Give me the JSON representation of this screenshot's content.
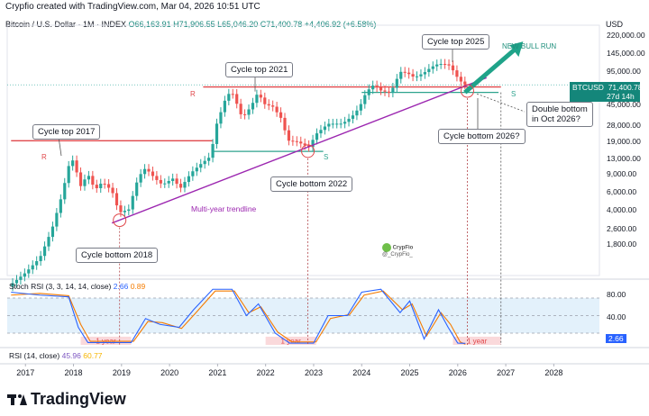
{
  "header": {
    "caption": "Crypfio created with TradingView.com, Mar 04, 2026 10:51 UTC"
  },
  "symbol": {
    "name": "Bitcoin / U.S. Dollar · 1M · INDEX",
    "open": "O66,163.91",
    "high": "H71,906.55",
    "low": "L65,046.20",
    "close": "C71,400.78",
    "change": "+4,406.92 (+6.58%)"
  },
  "currency": "USD",
  "price_label": {
    "ticker": "BTCUSD",
    "price": "71,400.78",
    "countdown": "27d 14h"
  },
  "colors": {
    "up": "#26a69a",
    "down": "#ef5350",
    "resistance": "#e0484b",
    "support": "#2ea38e",
    "trend": "#9c27b0",
    "rsi": "#f57c00",
    "stoch": "#2962ff",
    "arrow": "#1fa389"
  },
  "annotations": {
    "top_2017": "Cycle top 2017",
    "top_2021": "Cycle top 2021",
    "top_2025": "Cycle top 2025",
    "bottom_2018": "Cycle bottom 2018",
    "bottom_2022": "Cycle bottom 2022",
    "bottom_2026": "Cycle bottom 2026?",
    "double_bottom": "Double bottom in Oct 2026?",
    "new_bull_run": "NEW BULL RUN",
    "trendline": "Multi-year trendline",
    "r": "R",
    "s": "S",
    "year": "1 year"
  },
  "indicators": {
    "stoch": {
      "label": "Stoch RSI (3, 3, 14, 14, close)",
      "k": "2.66",
      "d": "0.89",
      "level_high": "80.00",
      "level_low": "40.00",
      "current": "2.66"
    },
    "rsi": {
      "label": "RSI (14, close)",
      "value": "45.96",
      "ma": "60.77"
    }
  },
  "watermark": {
    "name": "CrypFio",
    "handle": "@_CrypFio_"
  },
  "brand": "TradingView",
  "chart_data": {
    "type": "candlestick",
    "title": "Bitcoin / U.S. Dollar · 1M · INDEX",
    "y_scale": "log",
    "ylim": [
      900,
      280000
    ],
    "y_ticks": [
      1800,
      2600,
      4000,
      6000,
      9000,
      13000,
      19000,
      28000,
      45000,
      95000,
      145000,
      220000
    ],
    "y_tick_labels": [
      "1,800.00",
      "2,600.00",
      "4,000.00",
      "6,000.00",
      "9,000.00",
      "13,000.00",
      "19,000.00",
      "28,000.00",
      "45,000.00",
      "95,000.00",
      "145,000.00",
      "220,000.00"
    ],
    "x_ticks": [
      "2017",
      "2018",
      "2019",
      "2020",
      "2021",
      "2022",
      "2023",
      "2024",
      "2025",
      "2026",
      "2027",
      "2028"
    ],
    "t_start": 2016.62,
    "t_end": 2028.95,
    "resistance_levels": [
      {
        "price": 68000,
        "from": 2020.7,
        "to": 2026.9
      },
      {
        "price": 19800,
        "from": 2016.7,
        "to": 2020.9
      }
    ],
    "support_levels": [
      {
        "price": 60000,
        "from": 2024.0,
        "to": 2026.85
      },
      {
        "price": 15500,
        "from": 2020.9,
        "to": 2023.2
      }
    ],
    "trendline": {
      "t1": 2018.8,
      "p1": 3000,
      "t2": 2026.6,
      "p2": 84000
    },
    "cycle_bottoms": [
      {
        "t": 2018.96,
        "p": 3200
      },
      {
        "t": 2022.88,
        "p": 15600
      },
      {
        "t": 2026.2,
        "p": 62000
      }
    ],
    "candle_path": [
      {
        "t": 2016.65,
        "p": 700
      },
      {
        "t": 2017.0,
        "p": 960
      },
      {
        "t": 2017.3,
        "p": 1350
      },
      {
        "t": 2017.55,
        "p": 2600
      },
      {
        "t": 2017.75,
        "p": 5500
      },
      {
        "t": 2017.95,
        "p": 14000
      },
      {
        "t": 2018.05,
        "p": 10200
      },
      {
        "t": 2018.15,
        "p": 7000
      },
      {
        "t": 2018.3,
        "p": 9200
      },
      {
        "t": 2018.45,
        "p": 6400
      },
      {
        "t": 2018.6,
        "p": 7700
      },
      {
        "t": 2018.8,
        "p": 6300
      },
      {
        "t": 2018.95,
        "p": 3800
      },
      {
        "t": 2019.15,
        "p": 4100
      },
      {
        "t": 2019.35,
        "p": 8600
      },
      {
        "t": 2019.5,
        "p": 10600
      },
      {
        "t": 2019.7,
        "p": 8300
      },
      {
        "t": 2019.85,
        "p": 7200
      },
      {
        "t": 2020.1,
        "p": 8500
      },
      {
        "t": 2020.2,
        "p": 6400
      },
      {
        "t": 2020.45,
        "p": 9500
      },
      {
        "t": 2020.65,
        "p": 11600
      },
      {
        "t": 2020.85,
        "p": 13800
      },
      {
        "t": 2020.98,
        "p": 29000
      },
      {
        "t": 2021.2,
        "p": 58000
      },
      {
        "t": 2021.35,
        "p": 57700
      },
      {
        "t": 2021.45,
        "p": 37000
      },
      {
        "t": 2021.55,
        "p": 35000
      },
      {
        "t": 2021.7,
        "p": 43800
      },
      {
        "t": 2021.85,
        "p": 61300
      },
      {
        "t": 2021.95,
        "p": 46300
      },
      {
        "t": 2022.15,
        "p": 43200
      },
      {
        "t": 2022.35,
        "p": 31800
      },
      {
        "t": 2022.45,
        "p": 19900
      },
      {
        "t": 2022.65,
        "p": 19400
      },
      {
        "t": 2022.9,
        "p": 17100
      },
      {
        "t": 2023.05,
        "p": 23100
      },
      {
        "t": 2023.3,
        "p": 29200
      },
      {
        "t": 2023.6,
        "p": 29300
      },
      {
        "t": 2023.8,
        "p": 34600
      },
      {
        "t": 2023.95,
        "p": 42300
      },
      {
        "t": 2024.1,
        "p": 61100
      },
      {
        "t": 2024.25,
        "p": 71300
      },
      {
        "t": 2024.4,
        "p": 62700
      },
      {
        "t": 2024.6,
        "p": 58900
      },
      {
        "t": 2024.8,
        "p": 96400
      },
      {
        "t": 2024.95,
        "p": 93400
      },
      {
        "t": 2025.1,
        "p": 84300
      },
      {
        "t": 2025.3,
        "p": 94200
      },
      {
        "t": 2025.45,
        "p": 107100
      },
      {
        "t": 2025.6,
        "p": 115800
      },
      {
        "t": 2025.75,
        "p": 114000
      },
      {
        "t": 2025.85,
        "p": 110000
      },
      {
        "t": 2025.95,
        "p": 90000
      },
      {
        "t": 2026.05,
        "p": 78000
      },
      {
        "t": 2026.16,
        "p": 71400
      }
    ],
    "stoch_k_path": [
      {
        "t": 2016.7,
        "v": 90
      },
      {
        "t": 2017.3,
        "v": 85
      },
      {
        "t": 2017.9,
        "v": 82
      },
      {
        "t": 2018.1,
        "v": 30
      },
      {
        "t": 2018.3,
        "v": 4
      },
      {
        "t": 2019.2,
        "v": 4
      },
      {
        "t": 2019.5,
        "v": 45
      },
      {
        "t": 2019.8,
        "v": 35
      },
      {
        "t": 2020.2,
        "v": 30
      },
      {
        "t": 2020.5,
        "v": 60
      },
      {
        "t": 2020.9,
        "v": 95
      },
      {
        "t": 2021.3,
        "v": 95
      },
      {
        "t": 2021.6,
        "v": 50
      },
      {
        "t": 2021.85,
        "v": 70
      },
      {
        "t": 2022.2,
        "v": 20
      },
      {
        "t": 2022.5,
        "v": 3
      },
      {
        "t": 2023.0,
        "v": 3
      },
      {
        "t": 2023.3,
        "v": 50
      },
      {
        "t": 2023.7,
        "v": 50
      },
      {
        "t": 2024.0,
        "v": 90
      },
      {
        "t": 2024.4,
        "v": 95
      },
      {
        "t": 2024.8,
        "v": 55
      },
      {
        "t": 2025.0,
        "v": 75
      },
      {
        "t": 2025.3,
        "v": 10
      },
      {
        "t": 2025.6,
        "v": 60
      },
      {
        "t": 2025.8,
        "v": 30
      },
      {
        "t": 2026.0,
        "v": 3
      },
      {
        "t": 2026.16,
        "v": 2.66
      }
    ],
    "stoch_d_path": [
      {
        "t": 2016.7,
        "v": 85
      },
      {
        "t": 2017.3,
        "v": 88
      },
      {
        "t": 2017.9,
        "v": 84
      },
      {
        "t": 2018.15,
        "v": 35
      },
      {
        "t": 2018.35,
        "v": 6
      },
      {
        "t": 2019.25,
        "v": 6
      },
      {
        "t": 2019.55,
        "v": 40
      },
      {
        "t": 2019.85,
        "v": 38
      },
      {
        "t": 2020.25,
        "v": 28
      },
      {
        "t": 2020.55,
        "v": 55
      },
      {
        "t": 2020.95,
        "v": 92
      },
      {
        "t": 2021.35,
        "v": 92
      },
      {
        "t": 2021.65,
        "v": 55
      },
      {
        "t": 2021.9,
        "v": 65
      },
      {
        "t": 2022.25,
        "v": 22
      },
      {
        "t": 2022.55,
        "v": 5
      },
      {
        "t": 2023.05,
        "v": 5
      },
      {
        "t": 2023.35,
        "v": 45
      },
      {
        "t": 2023.75,
        "v": 52
      },
      {
        "t": 2024.05,
        "v": 85
      },
      {
        "t": 2024.45,
        "v": 92
      },
      {
        "t": 2024.85,
        "v": 60
      },
      {
        "t": 2025.05,
        "v": 70
      },
      {
        "t": 2025.35,
        "v": 15
      },
      {
        "t": 2025.65,
        "v": 55
      },
      {
        "t": 2025.85,
        "v": 35
      },
      {
        "t": 2026.05,
        "v": 5
      },
      {
        "t": 2026.16,
        "v": 0.89
      }
    ],
    "year_boxes": [
      {
        "from": 2018.15,
        "to": 2019.2
      },
      {
        "from": 2022.0,
        "to": 2023.05
      },
      {
        "from": 2025.9,
        "to": 2026.9
      }
    ]
  }
}
